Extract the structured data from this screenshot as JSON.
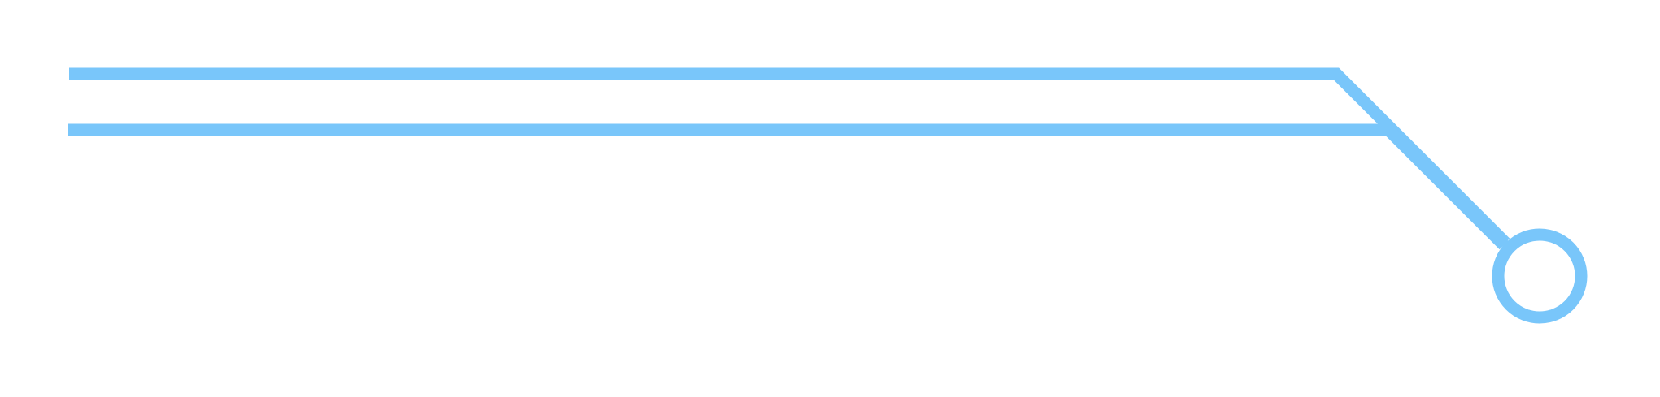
{
  "colors": {
    "background": "#ffffff",
    "line": "#79c6fa"
  },
  "elements": {
    "top_track": "line",
    "bottom_track": "line",
    "end_node": "circle"
  }
}
